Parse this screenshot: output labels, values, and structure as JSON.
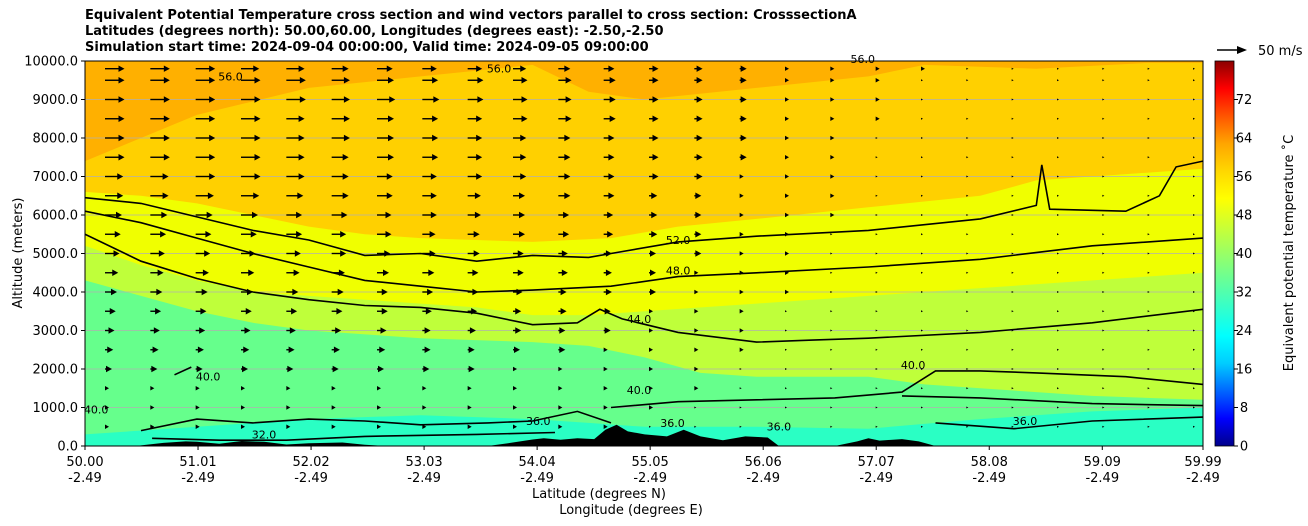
{
  "chart_data": {
    "type": "contour",
    "title_lines": [
      "Equivalent Potential Temperature cross section and wind vectors parallel to cross section: CrosssectionA",
      "Latitudes (degrees north): 50.00,60.00, Longitudes (degrees east): -2.50,-2.50",
      "Simulation start time: 2024-09-04 00:00:00, Valid time: 2024-09-05 09:00:00"
    ],
    "xlabel_lat": "Latitude (degrees N)",
    "xlabel_lon": "Longitude (degrees E)",
    "ylabel": "Altitude (meters)",
    "xlim": [
      50.0,
      59.99
    ],
    "ylim": [
      0,
      10000
    ],
    "x_ticks": [
      {
        "lat": "50.00",
        "lon": "-2.49"
      },
      {
        "lat": "51.01",
        "lon": "-2.49"
      },
      {
        "lat": "52.02",
        "lon": "-2.49"
      },
      {
        "lat": "53.03",
        "lon": "-2.49"
      },
      {
        "lat": "54.04",
        "lon": "-2.49"
      },
      {
        "lat": "55.05",
        "lon": "-2.49"
      },
      {
        "lat": "56.06",
        "lon": "-2.49"
      },
      {
        "lat": "57.07",
        "lon": "-2.49"
      },
      {
        "lat": "58.08",
        "lon": "-2.49"
      },
      {
        "lat": "59.09",
        "lon": "-2.49"
      },
      {
        "lat": "59.99",
        "lon": "-2.49"
      }
    ],
    "y_ticks": [
      "0.0",
      "1000.0",
      "2000.0",
      "3000.0",
      "4000.0",
      "5000.0",
      "6000.0",
      "7000.0",
      "8000.0",
      "9000.0",
      "10000.0"
    ],
    "grid": "horizontal",
    "colorbar": {
      "label": "Equivalent potential temperature ˚C",
      "range": [
        0,
        80
      ],
      "ticks": [
        "0",
        "8",
        "16",
        "24",
        "32",
        "40",
        "48",
        "56",
        "64",
        "72"
      ]
    },
    "wind_key": {
      "label": "50 m/s"
    },
    "contour_labels": [
      {
        "text": "52.0",
        "lat": 55.3,
        "alt": 5250
      },
      {
        "text": "48.0",
        "lat": 55.3,
        "alt": 4450
      },
      {
        "text": "44.0",
        "lat": 54.95,
        "alt": 3200
      },
      {
        "text": "40.0",
        "lat": 54.95,
        "alt": 1350
      },
      {
        "text": "40.0",
        "lat": 57.4,
        "alt": 2000
      },
      {
        "text": "40.0",
        "lat": 51.1,
        "alt": 1700
      },
      {
        "text": "40.0",
        "lat": 50.1,
        "alt": 850
      },
      {
        "text": "36.0",
        "lat": 55.25,
        "alt": 500
      },
      {
        "text": "36.0",
        "lat": 54.05,
        "alt": 550
      },
      {
        "text": "36.0",
        "lat": 56.2,
        "alt": 400
      },
      {
        "text": "36.0",
        "lat": 58.4,
        "alt": 550
      },
      {
        "text": "32.0",
        "lat": 51.6,
        "alt": 200
      },
      {
        "text": "56.0",
        "lat": 51.3,
        "alt": 9500
      },
      {
        "text": "56.0",
        "lat": 53.7,
        "alt": 9700
      },
      {
        "text": "56.0",
        "lat": 56.95,
        "alt": 9950
      }
    ],
    "contours": [
      {
        "level": 52,
        "points": [
          [
            50.0,
            6450
          ],
          [
            50.5,
            6300
          ],
          [
            51.0,
            5950
          ],
          [
            51.5,
            5600
          ],
          [
            52.0,
            5350
          ],
          [
            52.5,
            4950
          ],
          [
            53.0,
            5000
          ],
          [
            53.5,
            4800
          ],
          [
            54.0,
            4950
          ],
          [
            54.5,
            4900
          ],
          [
            54.7,
            5000
          ],
          [
            55.3,
            5300
          ],
          [
            56.0,
            5450
          ],
          [
            57.0,
            5600
          ],
          [
            58.0,
            5900
          ],
          [
            58.5,
            6250
          ],
          [
            58.55,
            7300
          ],
          [
            58.62,
            6150
          ],
          [
            59.3,
            6100
          ],
          [
            59.6,
            6500
          ],
          [
            59.75,
            7250
          ],
          [
            59.99,
            7400
          ]
        ]
      },
      {
        "level": 48,
        "points": [
          [
            50.0,
            6100
          ],
          [
            50.5,
            5800
          ],
          [
            51.0,
            5400
          ],
          [
            51.5,
            5000
          ],
          [
            52.0,
            4650
          ],
          [
            52.5,
            4300
          ],
          [
            53.0,
            4150
          ],
          [
            53.5,
            4000
          ],
          [
            54.0,
            4050
          ],
          [
            54.7,
            4150
          ],
          [
            55.3,
            4400
          ],
          [
            56.0,
            4500
          ],
          [
            57.0,
            4650
          ],
          [
            58.0,
            4850
          ],
          [
            59.0,
            5200
          ],
          [
            59.99,
            5400
          ]
        ]
      },
      {
        "level": 44,
        "points": [
          [
            50.0,
            5500
          ],
          [
            50.5,
            4800
          ],
          [
            51.0,
            4350
          ],
          [
            51.5,
            4000
          ],
          [
            52.0,
            3800
          ],
          [
            52.5,
            3650
          ],
          [
            53.0,
            3600
          ],
          [
            53.5,
            3450
          ],
          [
            54.0,
            3150
          ],
          [
            54.4,
            3200
          ],
          [
            54.6,
            3550
          ],
          [
            54.8,
            3300
          ],
          [
            55.3,
            2950
          ],
          [
            56.0,
            2700
          ],
          [
            56.5,
            2750
          ],
          [
            57.0,
            2800
          ],
          [
            58.0,
            2950
          ],
          [
            59.0,
            3200
          ],
          [
            59.99,
            3550
          ]
        ]
      },
      {
        "level": 40,
        "points": [
          [
            50.8,
            1850
          ],
          [
            50.95,
            2050
          ]
        ]
      },
      {
        "level": 40,
        "points": [
          [
            54.7,
            1000
          ],
          [
            55.3,
            1150
          ],
          [
            56.0,
            1200
          ],
          [
            56.7,
            1250
          ],
          [
            57.3,
            1400
          ],
          [
            57.6,
            1950
          ],
          [
            58.0,
            1950
          ],
          [
            58.5,
            1900
          ],
          [
            59.3,
            1800
          ],
          [
            59.99,
            1600
          ]
        ]
      },
      {
        "level": 38,
        "points": [
          [
            57.3,
            1300
          ],
          [
            58.0,
            1250
          ],
          [
            59.0,
            1100
          ],
          [
            59.99,
            1050
          ]
        ]
      },
      {
        "level": 36,
        "points": [
          [
            57.6,
            600
          ],
          [
            58.3,
            450
          ],
          [
            59.0,
            650
          ],
          [
            59.99,
            750
          ]
        ]
      },
      {
        "level": 36,
        "points": [
          [
            50.5,
            400
          ],
          [
            51.0,
            700
          ],
          [
            51.5,
            600
          ],
          [
            52.0,
            700
          ],
          [
            52.5,
            650
          ],
          [
            53.0,
            550
          ],
          [
            53.6,
            600
          ],
          [
            54.0,
            650
          ],
          [
            54.4,
            900
          ],
          [
            54.7,
            600
          ]
        ]
      },
      {
        "level": 32,
        "points": [
          [
            50.6,
            200
          ],
          [
            51.2,
            150
          ],
          [
            51.8,
            150
          ],
          [
            52.5,
            250
          ],
          [
            53.5,
            300
          ],
          [
            54.2,
            350
          ]
        ]
      }
    ],
    "terrain": [
      [
        50.0,
        0
      ],
      [
        50.45,
        0
      ],
      [
        50.55,
        30
      ],
      [
        50.7,
        80
      ],
      [
        50.9,
        120
      ],
      [
        51.0,
        110
      ],
      [
        51.2,
        60
      ],
      [
        51.4,
        130
      ],
      [
        51.6,
        110
      ],
      [
        51.8,
        40
      ],
      [
        52.0,
        70
      ],
      [
        52.3,
        90
      ],
      [
        52.5,
        30
      ],
      [
        52.7,
        0
      ],
      [
        53.6,
        0
      ],
      [
        53.8,
        80
      ],
      [
        54.0,
        170
      ],
      [
        54.1,
        200
      ],
      [
        54.25,
        160
      ],
      [
        54.4,
        200
      ],
      [
        54.55,
        180
      ],
      [
        54.65,
        420
      ],
      [
        54.75,
        550
      ],
      [
        54.85,
        380
      ],
      [
        55.0,
        300
      ],
      [
        55.2,
        250
      ],
      [
        55.35,
        420
      ],
      [
        55.5,
        250
      ],
      [
        55.7,
        150
      ],
      [
        55.9,
        250
      ],
      [
        56.1,
        220
      ],
      [
        56.2,
        0
      ],
      [
        56.7,
        0
      ],
      [
        56.9,
        120
      ],
      [
        57.0,
        200
      ],
      [
        57.1,
        140
      ],
      [
        57.3,
        180
      ],
      [
        57.45,
        120
      ],
      [
        57.6,
        0
      ],
      [
        59.99,
        0
      ]
    ],
    "wind_rows": [
      {
        "alt": 9800,
        "speeds": [
          14,
          14,
          14,
          13,
          13,
          12,
          11,
          10,
          10,
          9,
          8,
          7,
          6,
          5,
          4,
          3,
          2,
          2,
          2,
          1,
          1,
          1,
          1,
          1,
          1
        ]
      },
      {
        "alt": 9500,
        "speeds": [
          14,
          14,
          14,
          14,
          14,
          13,
          12,
          11,
          11,
          10,
          9,
          8,
          6,
          5,
          4,
          3,
          2,
          2,
          1,
          1,
          1,
          1,
          1,
          1,
          1
        ]
      },
      {
        "alt": 9000,
        "speeds": [
          14,
          14,
          14,
          14,
          14,
          13,
          13,
          12,
          11,
          10,
          9,
          8,
          6,
          5,
          4,
          3,
          2,
          2,
          1,
          1,
          1,
          1,
          1,
          1,
          1
        ]
      },
      {
        "alt": 8500,
        "speeds": [
          14,
          14,
          14,
          14,
          13,
          13,
          12,
          11,
          10,
          10,
          9,
          8,
          6,
          5,
          4,
          3,
          2,
          2,
          1,
          1,
          1,
          1,
          1,
          1,
          1
        ]
      },
      {
        "alt": 8000,
        "speeds": [
          14,
          14,
          14,
          14,
          13,
          13,
          12,
          11,
          10,
          9,
          8,
          7,
          6,
          5,
          4,
          3,
          2,
          1,
          1,
          1,
          1,
          1,
          1,
          1,
          1
        ]
      },
      {
        "alt": 7500,
        "speeds": [
          14,
          14,
          14,
          14,
          13,
          12,
          12,
          11,
          10,
          9,
          8,
          7,
          6,
          5,
          4,
          3,
          2,
          1,
          1,
          1,
          1,
          1,
          1,
          1,
          1
        ]
      },
      {
        "alt": 7000,
        "speeds": [
          13,
          13,
          14,
          14,
          13,
          12,
          11,
          10,
          10,
          9,
          8,
          7,
          6,
          5,
          3,
          2,
          2,
          1,
          1,
          1,
          1,
          1,
          1,
          1,
          1
        ]
      },
      {
        "alt": 6500,
        "speeds": [
          13,
          13,
          13,
          13,
          12,
          12,
          11,
          10,
          9,
          8,
          8,
          7,
          5,
          4,
          3,
          2,
          2,
          1,
          1,
          1,
          1,
          1,
          1,
          1,
          1
        ]
      },
      {
        "alt": 6000,
        "speeds": [
          12,
          12,
          12,
          12,
          11,
          11,
          10,
          10,
          9,
          8,
          7,
          6,
          5,
          4,
          3,
          2,
          2,
          1,
          1,
          1,
          1,
          1,
          1,
          1,
          1
        ]
      },
      {
        "alt": 5500,
        "speeds": [
          11,
          11,
          11,
          11,
          11,
          10,
          10,
          9,
          8,
          8,
          7,
          6,
          5,
          4,
          3,
          2,
          1,
          1,
          1,
          1,
          1,
          1,
          1,
          1,
          1
        ]
      },
      {
        "alt": 5000,
        "speeds": [
          10,
          10,
          10,
          10,
          10,
          10,
          9,
          9,
          8,
          7,
          6,
          5,
          4,
          4,
          3,
          2,
          1,
          1,
          1,
          1,
          1,
          1,
          1,
          1,
          1
        ]
      },
      {
        "alt": 4500,
        "speeds": [
          9,
          9,
          9,
          9,
          9,
          9,
          8,
          8,
          7,
          7,
          6,
          5,
          4,
          3,
          2,
          2,
          1,
          1,
          1,
          1,
          1,
          1,
          1,
          1,
          1
        ]
      },
      {
        "alt": 4000,
        "speeds": [
          8,
          8,
          8,
          8,
          8,
          8,
          7,
          7,
          7,
          6,
          5,
          5,
          4,
          3,
          2,
          2,
          1,
          1,
          1,
          1,
          1,
          1,
          1,
          1,
          1
        ]
      },
      {
        "alt": 3500,
        "speeds": [
          7,
          7,
          7,
          7,
          7,
          7,
          7,
          6,
          6,
          5,
          5,
          4,
          3,
          3,
          2,
          1,
          1,
          1,
          1,
          1,
          1,
          1,
          1,
          1,
          1
        ]
      },
      {
        "alt": 3000,
        "speeds": [
          6,
          6,
          6,
          6,
          6,
          6,
          6,
          5,
          5,
          5,
          4,
          4,
          3,
          2,
          2,
          1,
          1,
          1,
          1,
          1,
          1,
          1,
          1,
          1,
          1
        ]
      },
      {
        "alt": 2500,
        "speeds": [
          5,
          5,
          5,
          5,
          5,
          5,
          5,
          5,
          4,
          4,
          4,
          3,
          3,
          2,
          2,
          1,
          1,
          1,
          1,
          1,
          1,
          1,
          1,
          1,
          1
        ]
      },
      {
        "alt": 2000,
        "speeds": [
          4,
          4,
          4,
          4,
          4,
          4,
          4,
          4,
          4,
          3,
          3,
          3,
          2,
          2,
          1,
          1,
          1,
          1,
          1,
          1,
          1,
          1,
          1,
          1,
          1
        ]
      },
      {
        "alt": 1500,
        "speeds": [
          3,
          3,
          3,
          3,
          3,
          3,
          3,
          3,
          3,
          3,
          2,
          2,
          2,
          2,
          1,
          1,
          1,
          1,
          1,
          1,
          1,
          1,
          1,
          1,
          1
        ]
      },
      {
        "alt": 1000,
        "speeds": [
          3,
          3,
          3,
          3,
          3,
          3,
          3,
          3,
          3,
          2,
          2,
          2,
          2,
          1,
          1,
          1,
          1,
          1,
          1,
          1,
          1,
          1,
          1,
          1,
          1
        ]
      },
      {
        "alt": 500,
        "speeds": [
          2,
          2,
          2,
          2,
          2,
          2,
          2,
          2,
          2,
          2,
          2,
          2,
          1,
          1,
          1,
          1,
          1,
          1,
          1,
          1,
          1,
          1,
          1,
          1,
          1
        ]
      }
    ],
    "colors": {
      "colorbar_stops": [
        "#00008b",
        "#0000ff",
        "#0066ff",
        "#00ccff",
        "#00ffff",
        "#33ffcc",
        "#66ff99",
        "#99ff66",
        "#ccff33",
        "#ffff00",
        "#ffd700",
        "#ffa500",
        "#ff5500",
        "#ff0000",
        "#8b0000"
      ],
      "fill_top": "#ffb000",
      "fill_upper": "#ffd000",
      "fill_mid": "#f0ff00",
      "fill_lower_mid": "#bfff3a",
      "fill_low": "#66ff8c",
      "fill_surface": "#2affc4",
      "terrain": "#000000",
      "grid": "#b0b0b0"
    }
  }
}
